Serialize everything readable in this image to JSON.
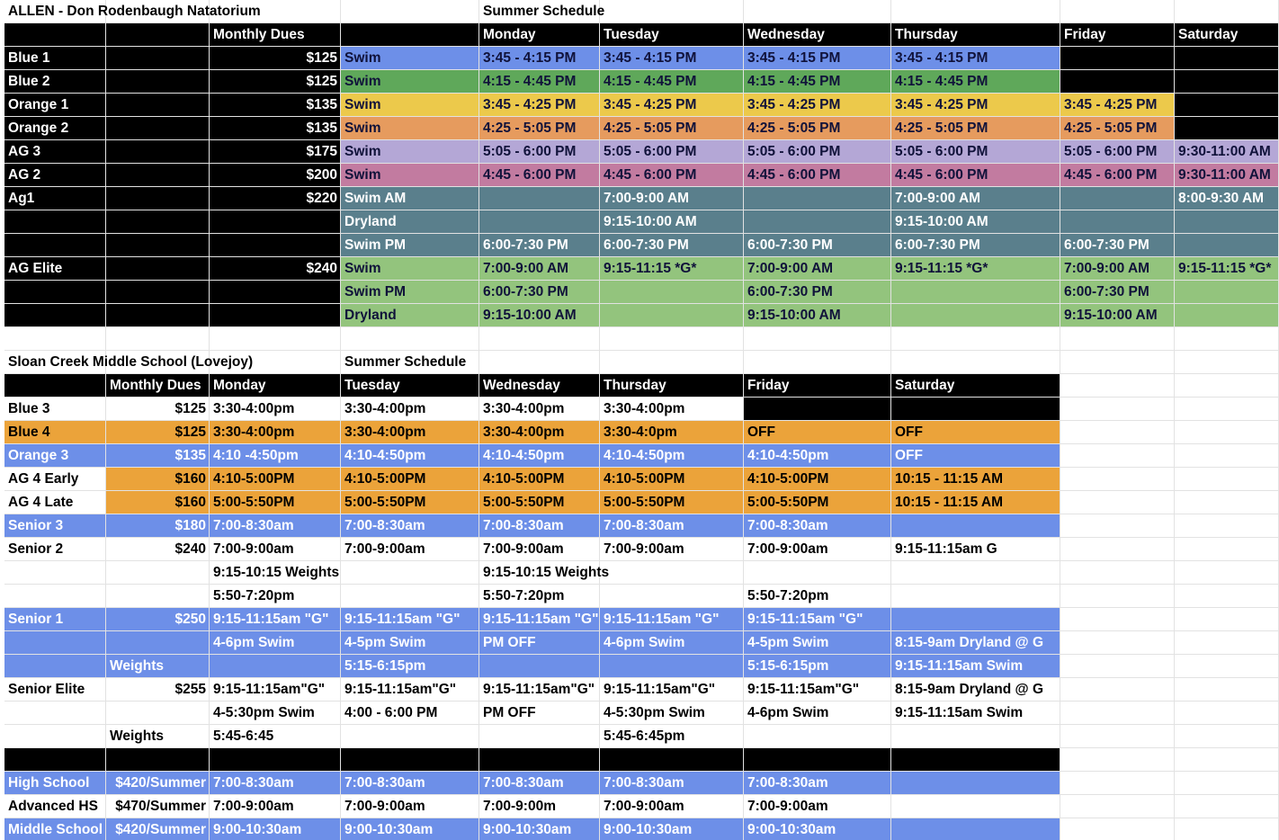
{
  "sections": [
    {
      "title": "ALLEN - Don Rodenbaugh Natatorium",
      "subtitle": "Summer Schedule",
      "header": [
        null,
        null,
        "Monthly Dues",
        null,
        "Monday",
        "Tuesday",
        "Wednesday",
        "Thursday",
        "Friday",
        "Saturday"
      ],
      "rows": [
        [
          "Blue 1",
          null,
          "$125",
          "Swim",
          "3:45 - 4:15 PM",
          "3:45 - 4:15 PM",
          "3:45 - 4:15 PM",
          "3:45 - 4:15 PM",
          null,
          null
        ],
        [
          "Blue 2",
          null,
          "$125",
          "Swim",
          "4:15 - 4:45 PM",
          "4:15 - 4:45 PM",
          "4:15 - 4:45 PM",
          "4:15 - 4:45 PM",
          null,
          null
        ],
        [
          "Orange 1",
          null,
          "$135",
          "Swim",
          "3:45 - 4:25 PM",
          "3:45 - 4:25 PM",
          "3:45 - 4:25 PM",
          "3:45 - 4:25 PM",
          "3:45 - 4:25 PM",
          null
        ],
        [
          "Orange 2",
          null,
          "$135",
          "Swim",
          "4:25 - 5:05 PM",
          "4:25 - 5:05 PM",
          "4:25 - 5:05 PM",
          "4:25 - 5:05 PM",
          "4:25 - 5:05 PM",
          null
        ],
        [
          "AG 3",
          null,
          "$175",
          "Swim",
          "5:05 - 6:00 PM",
          "5:05 - 6:00 PM",
          "5:05 - 6:00 PM",
          "5:05 - 6:00 PM",
          "5:05 - 6:00 PM",
          "9:30-11:00 AM"
        ],
        [
          "AG 2",
          null,
          "$200",
          "Swim",
          "4:45 - 6:00 PM",
          "4:45 - 6:00 PM",
          "4:45 - 6:00 PM",
          "4:45 - 6:00 PM",
          "4:45 - 6:00 PM",
          "9:30-11:00 AM"
        ],
        [
          "Ag1",
          null,
          "$220",
          "Swim AM",
          null,
          "7:00-9:00 AM",
          null,
          "7:00-9:00 AM",
          null,
          "8:00-9:30 AM"
        ],
        [
          null,
          null,
          null,
          "Dryland",
          null,
          "9:15-10:00 AM",
          null,
          "9:15-10:00 AM",
          null,
          null
        ],
        [
          null,
          null,
          null,
          "Swim PM",
          "6:00-7:30 PM",
          "6:00-7:30 PM",
          "6:00-7:30 PM",
          "6:00-7:30 PM",
          "6:00-7:30 PM",
          null
        ],
        [
          "AG Elite",
          null,
          "$240",
          "Swim",
          "7:00-9:00 AM",
          "9:15-11:15 *G*",
          "7:00-9:00 AM",
          "9:15-11:15 *G*",
          "7:00-9:00 AM",
          "9:15-11:15 *G*"
        ],
        [
          null,
          null,
          null,
          "Swim PM",
          "6:00-7:30 PM",
          null,
          "6:00-7:30 PM",
          null,
          "6:00-7:30 PM",
          null
        ],
        [
          null,
          null,
          null,
          "Dryland",
          "9:15-10:00 AM",
          null,
          "9:15-10:00 AM",
          null,
          "9:15-10:00 AM",
          null
        ]
      ]
    },
    {
      "title": "Sloan Creek Middle School (Lovejoy)",
      "subtitle": "Summer Schedule",
      "header": [
        null,
        "Monthly Dues",
        "Monday",
        "Tuesday",
        "Wednesday",
        "Thursday",
        "Friday",
        "Saturday",
        null,
        null
      ],
      "rows": [
        [
          "Blue 3",
          "$125",
          "3:30-4:00pm",
          "3:30-4:00pm",
          "3:30-4:00pm",
          "3:30-4:00pm",
          null,
          null,
          null,
          null
        ],
        [
          "Blue 4",
          "$125",
          "3:30-4:00pm",
          "3:30-4:00pm",
          "3:30-4:00pm",
          "3:30-4:0pm",
          "OFF",
          "OFF",
          null,
          null
        ],
        [
          "Orange 3",
          "$135",
          "4:10 -4:50pm",
          "4:10-4:50pm",
          "4:10-4:50pm",
          "4:10-4:50pm",
          "4:10-4:50pm",
          "OFF",
          null,
          null
        ],
        [
          "AG 4 Early",
          "$160",
          "4:10-5:00PM",
          "4:10-5:00PM",
          "4:10-5:00PM",
          "4:10-5:00PM",
          "4:10-5:00PM",
          "10:15 - 11:15 AM",
          null,
          null
        ],
        [
          "AG 4 Late",
          "$160",
          "5:00-5:50PM",
          "5:00-5:50PM",
          "5:00-5:50PM",
          "5:00-5:50PM",
          "5:00-5:50PM",
          "10:15 - 11:15 AM",
          null,
          null
        ],
        [
          "Senior 3",
          "$180",
          "7:00-8:30am",
          "7:00-8:30am",
          "7:00-8:30am",
          "7:00-8:30am",
          "7:00-8:30am",
          null,
          null,
          null
        ],
        [
          "Senior 2",
          "$240",
          "7:00-9:00am",
          "7:00-9:00am",
          "7:00-9:00am",
          "7:00-9:00am",
          "7:00-9:00am",
          "9:15-11:15am G",
          null,
          null
        ],
        [
          null,
          null,
          "9:15-10:15 Weights",
          null,
          "9:15-10:15 Weights",
          null,
          null,
          null,
          null,
          null
        ],
        [
          null,
          null,
          "5:50-7:20pm",
          null,
          "5:50-7:20pm",
          null,
          "5:50-7:20pm",
          null,
          null,
          null
        ],
        [
          "Senior 1",
          "$250",
          "9:15-11:15am \"G\"",
          "9:15-11:15am \"G\"",
          "9:15-11:15am \"G\"",
          "9:15-11:15am \"G\"",
          "9:15-11:15am \"G\"",
          null,
          null,
          null
        ],
        [
          null,
          null,
          "4-6pm Swim",
          "4-5pm Swim",
          "PM OFF",
          "4-6pm Swim",
          "4-5pm Swim",
          "8:15-9am Dryland @ G",
          null,
          null
        ],
        [
          null,
          "Weights",
          null,
          "5:15-6:15pm",
          null,
          null,
          "5:15-6:15pm",
          "9:15-11:15am Swim",
          null,
          null
        ],
        [
          "Senior Elite",
          "$255",
          "9:15-11:15am\"G\"",
          "9:15-11:15am\"G\"",
          "9:15-11:15am\"G\"",
          "9:15-11:15am\"G\"",
          "9:15-11:15am\"G\"",
          "8:15-9am Dryland @ G",
          null,
          null
        ],
        [
          null,
          null,
          "4-5:30pm Swim",
          "4:00 - 6:00 PM",
          "PM OFF",
          "4-5:30pm Swim",
          "4-6pm Swim",
          "9:15-11:15am Swim",
          null,
          null
        ],
        [
          null,
          "Weights",
          "5:45-6:45",
          null,
          null,
          "5:45-6:45pm",
          null,
          null,
          null,
          null
        ],
        [
          null,
          null,
          null,
          null,
          null,
          null,
          null,
          null,
          null,
          null
        ],
        [
          "High School",
          "$420/Summer",
          "7:00-8:30am",
          "7:00-8:30am",
          "7:00-8:30am",
          "7:00-8:30am",
          "7:00-8:30am",
          null,
          null,
          null
        ],
        [
          "Advanced HS",
          "$470/Summer",
          "7:00-9:00am",
          "7:00-9:00am",
          "7:00-9:00m",
          "7:00-9:00am",
          "7:00-9:00am",
          null,
          null,
          null
        ],
        [
          "Middle School",
          "$420/Summer",
          "9:00-10:30am",
          "9:00-10:30am",
          "9:00-10:30am",
          "9:00-10:30am",
          "9:00-10:30am",
          null,
          null,
          null
        ]
      ]
    }
  ]
}
